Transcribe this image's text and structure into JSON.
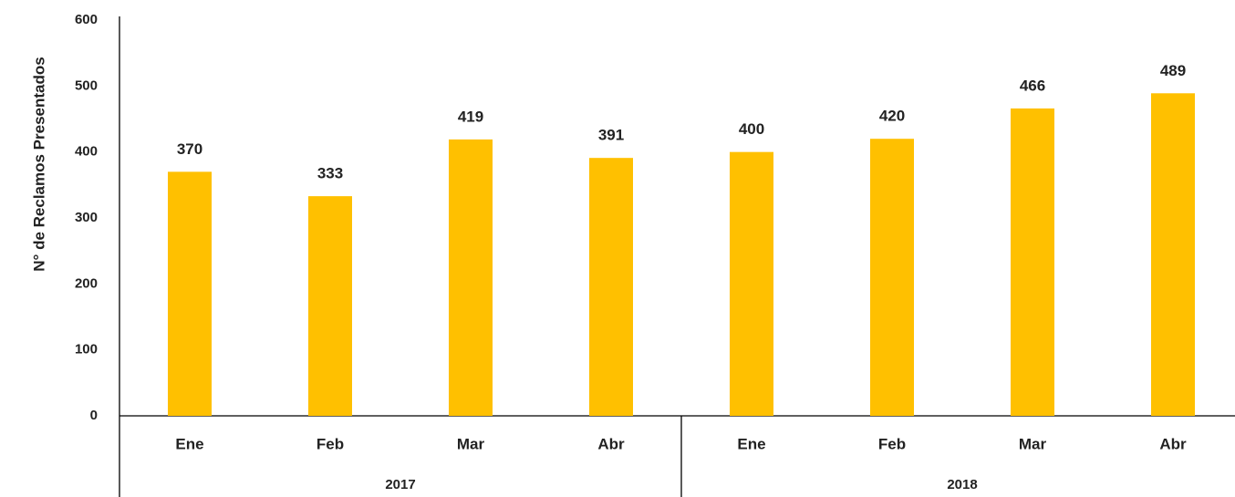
{
  "chart_data": {
    "type": "bar",
    "y_label": "N° de Reclamos Presentados",
    "groups": [
      {
        "name": "2017",
        "categories": [
          "Ene",
          "Feb",
          "Mar",
          "Abr"
        ]
      },
      {
        "name": "2018",
        "categories": [
          "Ene",
          "Feb",
          "Mar",
          "Abr"
        ]
      }
    ],
    "values": [
      370,
      333,
      419,
      391,
      400,
      420,
      466,
      489
    ],
    "color": "#ffc000",
    "ylim": [
      0,
      600
    ],
    "yticks": [
      0,
      100,
      200,
      300,
      400,
      500,
      600
    ],
    "grid": false
  }
}
